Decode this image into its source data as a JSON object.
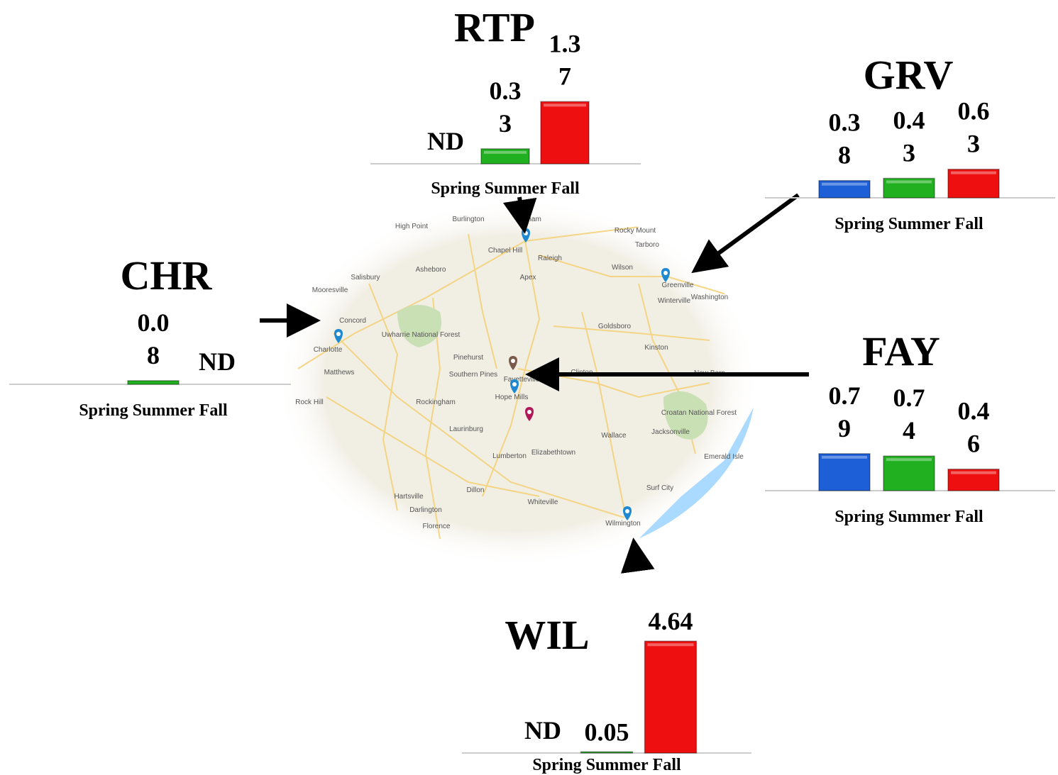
{
  "chart_data": [
    {
      "type": "bar",
      "title": "RTP",
      "categories": [
        "Spring",
        "Summer",
        "Fall"
      ],
      "values": [
        null,
        0.33,
        1.37
      ],
      "value_labels": [
        "ND",
        "0.33",
        "1.37"
      ],
      "colors": [
        "#1c5fd6",
        "#21b020",
        "#ee1010"
      ]
    },
    {
      "type": "bar",
      "title": "GRV",
      "categories": [
        "Spring",
        "Summer",
        "Fall"
      ],
      "values": [
        0.38,
        0.43,
        0.63
      ],
      "value_labels": [
        "0.38",
        "0.43",
        "0.63"
      ],
      "colors": [
        "#1c5fd6",
        "#21b020",
        "#ee1010"
      ]
    },
    {
      "type": "bar",
      "title": "CHR",
      "categories": [
        "Spring",
        "Summer",
        "Fall"
      ],
      "values": [
        null,
        0.08,
        null
      ],
      "value_labels": [
        null,
        "0.08",
        "ND"
      ],
      "colors": [
        "#1c5fd6",
        "#21b020",
        "#ee1010"
      ]
    },
    {
      "type": "bar",
      "title": "FAY",
      "categories": [
        "Spring",
        "Summer",
        "Fall"
      ],
      "values": [
        0.79,
        0.74,
        0.46
      ],
      "value_labels": [
        "0.79",
        "0.74",
        "0.46"
      ],
      "colors": [
        "#1c5fd6",
        "#21b020",
        "#ee1010"
      ]
    },
    {
      "type": "bar",
      "title": "WIL",
      "categories": [
        "Spring",
        "Summer",
        "Fall"
      ],
      "values": [
        null,
        0.05,
        4.64
      ],
      "value_labels": [
        "ND",
        "0.05",
        "4.64"
      ],
      "colors": [
        "#1c5fd6",
        "#21b020",
        "#ee1010"
      ]
    }
  ],
  "map": {
    "labels": [
      "Burlington",
      "Durham",
      "Chapel Hill",
      "Raleigh",
      "Rocky Mount",
      "Tarboro",
      "Wilson",
      "Greenville",
      "Winterville",
      "Washington",
      "High Point",
      "Salisbury",
      "Asheboro",
      "Apex",
      "Mooresville",
      "Concord",
      "Charlotte",
      "Matthews",
      "Rock Hill",
      "Uwharrie National Forest",
      "Goldsboro",
      "Kinston",
      "Pinehurst",
      "Southern Pines",
      "Fayetteville",
      "Hope Mills",
      "Clinton",
      "New Bern",
      "Rockingham",
      "Laurinburg",
      "Lumberton",
      "Elizabethtown",
      "Wallace",
      "Jacksonville",
      "Croatan National Forest",
      "Dillon",
      "Hartsville",
      "Darlington",
      "Florence",
      "Whiteville",
      "Surf City",
      "Wilmington",
      "Emerald Isle"
    ]
  }
}
